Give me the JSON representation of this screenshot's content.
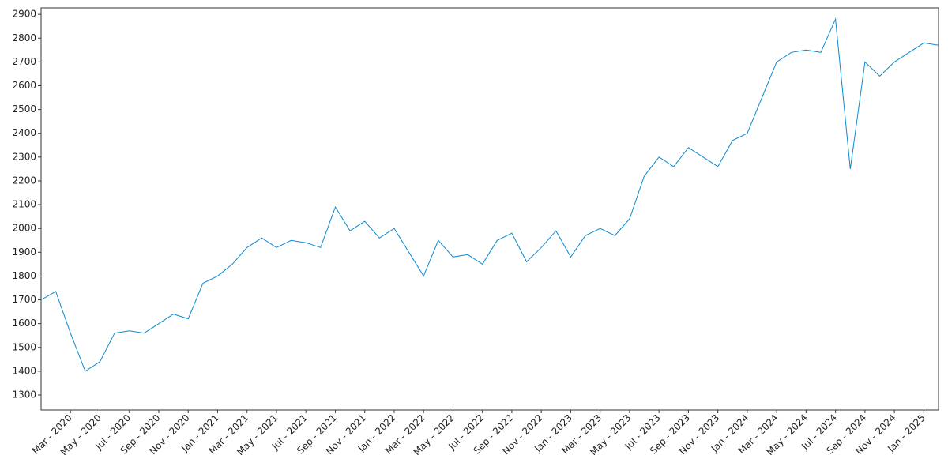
{
  "chart_data": {
    "type": "line",
    "x": [
      "2020-01",
      "2020-02",
      "2020-03",
      "2020-04",
      "2020-05",
      "2020-06",
      "2020-07",
      "2020-08",
      "2020-09",
      "2020-10",
      "2020-11",
      "2020-12",
      "2021-01",
      "2021-02",
      "2021-03",
      "2021-04",
      "2021-05",
      "2021-06",
      "2021-07",
      "2021-08",
      "2021-09",
      "2021-10",
      "2021-11",
      "2021-12",
      "2022-01",
      "2022-02",
      "2022-03",
      "2022-04",
      "2022-05",
      "2022-06",
      "2022-07",
      "2022-08",
      "2022-09",
      "2022-10",
      "2022-11",
      "2022-12",
      "2023-01",
      "2023-02",
      "2023-03",
      "2023-04",
      "2023-05",
      "2023-06",
      "2023-07",
      "2023-08",
      "2023-09",
      "2023-10",
      "2023-11",
      "2023-12",
      "2024-01",
      "2024-02",
      "2024-03",
      "2024-04",
      "2024-05",
      "2024-06",
      "2024-07",
      "2024-08",
      "2024-09",
      "2024-10",
      "2024-11",
      "2024-12",
      "2025-01",
      "2025-02"
    ],
    "series": [
      {
        "color": "#0a8ad0",
        "values": [
          1700,
          1735,
          1560,
          1400,
          1440,
          1560,
          1570,
          1560,
          1600,
          1640,
          1620,
          1770,
          1800,
          1850,
          1920,
          1960,
          1920,
          1950,
          1940,
          1920,
          2090,
          1990,
          2030,
          1960,
          2000,
          1900,
          1800,
          1950,
          1880,
          1890,
          1850,
          1950,
          1980,
          1860,
          1920,
          1990,
          1880,
          1970,
          2000,
          1970,
          2040,
          2220,
          2300,
          2260,
          2340,
          2300,
          2260,
          2370,
          2400,
          2550,
          2700,
          2740,
          2750,
          2740,
          2880,
          2250,
          2700,
          2640,
          2700,
          2740,
          2780,
          2770
        ]
      }
    ],
    "xlim": [
      "2020-01",
      "2025-02"
    ],
    "xticks": [
      {
        "value": "2020-03",
        "label": "Mar - 2020"
      },
      {
        "value": "2020-05",
        "label": "May - 2020"
      },
      {
        "value": "2020-07",
        "label": "Jul - 2020"
      },
      {
        "value": "2020-09",
        "label": "Sep - 2020"
      },
      {
        "value": "2020-11",
        "label": "Nov - 2020"
      },
      {
        "value": "2021-01",
        "label": "Jan - 2021"
      },
      {
        "value": "2021-03",
        "label": "Mar - 2021"
      },
      {
        "value": "2021-05",
        "label": "May - 2021"
      },
      {
        "value": "2021-07",
        "label": "Jul - 2021"
      },
      {
        "value": "2021-09",
        "label": "Sep - 2021"
      },
      {
        "value": "2021-11",
        "label": "Nov - 2021"
      },
      {
        "value": "2022-01",
        "label": "Jan - 2022"
      },
      {
        "value": "2022-03",
        "label": "Mar - 2022"
      },
      {
        "value": "2022-05",
        "label": "May - 2022"
      },
      {
        "value": "2022-07",
        "label": "Jul - 2022"
      },
      {
        "value": "2022-09",
        "label": "Sep - 2022"
      },
      {
        "value": "2022-11",
        "label": "Nov - 2022"
      },
      {
        "value": "2023-01",
        "label": "Jan - 2023"
      },
      {
        "value": "2023-03",
        "label": "Mar - 2023"
      },
      {
        "value": "2023-05",
        "label": "May - 2023"
      },
      {
        "value": "2023-07",
        "label": "Jul - 2023"
      },
      {
        "value": "2023-09",
        "label": "Sep - 2023"
      },
      {
        "value": "2023-11",
        "label": "Nov - 2023"
      },
      {
        "value": "2024-01",
        "label": "Jan - 2024"
      },
      {
        "value": "2024-03",
        "label": "Mar - 2024"
      },
      {
        "value": "2024-05",
        "label": "May - 2024"
      },
      {
        "value": "2024-07",
        "label": "Jul - 2024"
      },
      {
        "value": "2024-09",
        "label": "Sep - 2024"
      },
      {
        "value": "2024-11",
        "label": "Nov - 2024"
      },
      {
        "value": "2025-01",
        "label": "Jan - 2025"
      }
    ],
    "ylim": [
      1237,
      2927
    ],
    "yticks": [
      1300,
      1400,
      1500,
      1600,
      1700,
      1800,
      1900,
      2000,
      2100,
      2200,
      2300,
      2400,
      2500,
      2600,
      2700,
      2800,
      2900
    ],
    "grid": false
  }
}
